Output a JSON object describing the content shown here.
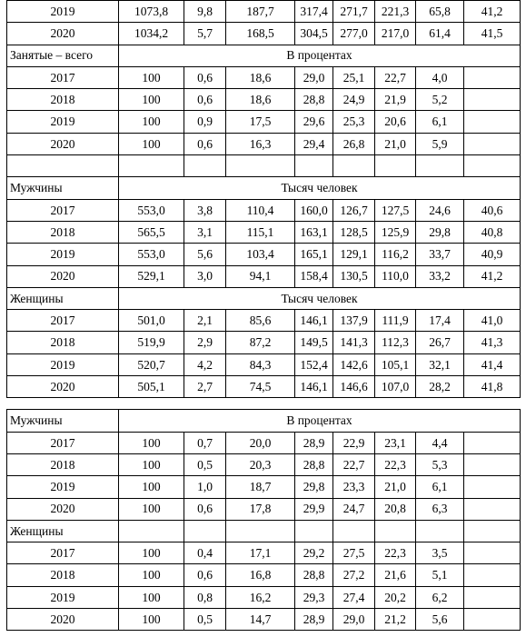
{
  "rows": [
    {
      "kind": "data",
      "year": "2019",
      "values": [
        "1073,8",
        "9,8",
        "187,7",
        "317,4",
        "271,7",
        "221,3",
        "65,8",
        "41,2"
      ]
    },
    {
      "kind": "data",
      "year": "2020",
      "values": [
        "1034,2",
        "5,7",
        "168,5",
        "304,5",
        "277,0",
        "217,0",
        "61,4",
        "41,5"
      ]
    },
    {
      "kind": "section",
      "label": "Занятые – всего",
      "unit": "В процентах"
    },
    {
      "kind": "data",
      "year": "2017",
      "values": [
        "100",
        "0,6",
        "18,6",
        "29,0",
        "25,1",
        "22,7",
        "4,0",
        ""
      ]
    },
    {
      "kind": "data",
      "year": "2018",
      "values": [
        "100",
        "0,6",
        "18,6",
        "28,8",
        "24,9",
        "21,9",
        "5,2",
        ""
      ]
    },
    {
      "kind": "data",
      "year": "2019",
      "values": [
        "100",
        "0,9",
        "17,5",
        "29,6",
        "25,3",
        "20,6",
        "6,1",
        ""
      ]
    },
    {
      "kind": "data",
      "year": "2020",
      "values": [
        "100",
        "0,6",
        "16,3",
        "29,4",
        "26,8",
        "21,0",
        "5,9",
        ""
      ]
    },
    {
      "kind": "data",
      "year": "",
      "values": [
        "",
        "",
        "",
        "",
        "",
        "",
        "",
        ""
      ]
    },
    {
      "kind": "section",
      "label": "Мужчины",
      "unit": "Тысяч человек"
    },
    {
      "kind": "data",
      "year": "2017",
      "values": [
        "553,0",
        "3,8",
        "110,4",
        "160,0",
        "126,7",
        "127,5",
        "24,6",
        "40,6"
      ]
    },
    {
      "kind": "data",
      "year": "2018",
      "values": [
        "565,5",
        "3,1",
        "115,1",
        "163,1",
        "128,5",
        "125,9",
        "29,8",
        "40,8"
      ]
    },
    {
      "kind": "data",
      "year": "2019",
      "values": [
        "553,0",
        "5,6",
        "103,4",
        "165,1",
        "129,1",
        "116,2",
        "33,7",
        "40,9"
      ]
    },
    {
      "kind": "data",
      "year": "2020",
      "values": [
        "529,1",
        "3,0",
        "94,1",
        "158,4",
        "130,5",
        "110,0",
        "33,2",
        "41,2"
      ]
    },
    {
      "kind": "section",
      "label": "Женщины",
      "unit": "Тысяч человек"
    },
    {
      "kind": "data",
      "year": "2017",
      "values": [
        "501,0",
        "2,1",
        "85,6",
        "146,1",
        "137,9",
        "111,9",
        "17,4",
        "41,0"
      ]
    },
    {
      "kind": "data",
      "year": "2018",
      "values": [
        "519,9",
        "2,9",
        "87,2",
        "149,5",
        "141,3",
        "112,3",
        "26,7",
        "41,3"
      ]
    },
    {
      "kind": "data",
      "year": "2019",
      "values": [
        "520,7",
        "4,2",
        "84,3",
        "152,4",
        "142,6",
        "105,1",
        "32,1",
        "41,4"
      ]
    },
    {
      "kind": "data",
      "year": "2020",
      "values": [
        "505,1",
        "2,7",
        "74,5",
        "146,1",
        "146,6",
        "107,0",
        "28,2",
        "41,8"
      ]
    },
    {
      "kind": "gap"
    },
    {
      "kind": "section",
      "label": "Мужчины",
      "unit": "В процентах"
    },
    {
      "kind": "data",
      "year": "2017",
      "values": [
        "100",
        "0,7",
        "20,0",
        "28,9",
        "22,9",
        "23,1",
        "4,4",
        ""
      ]
    },
    {
      "kind": "data",
      "year": "2018",
      "values": [
        "100",
        "0,5",
        "20,3",
        "28,8",
        "22,7",
        "22,3",
        "5,3",
        ""
      ]
    },
    {
      "kind": "data",
      "year": "2019",
      "values": [
        "100",
        "1,0",
        "18,7",
        "29,8",
        "23,3",
        "21,0",
        "6,1",
        ""
      ]
    },
    {
      "kind": "data",
      "year": "2020",
      "values": [
        "100",
        "0,6",
        "17,8",
        "29,9",
        "24,7",
        "20,8",
        "6,3",
        ""
      ]
    },
    {
      "kind": "label",
      "label": "Женщины",
      "values": [
        "",
        "",
        "",
        "",
        "",
        "",
        "",
        ""
      ]
    },
    {
      "kind": "data",
      "year": "2017",
      "values": [
        "100",
        "0,4",
        "17,1",
        "29,2",
        "27,5",
        "22,3",
        "3,5",
        ""
      ]
    },
    {
      "kind": "data",
      "year": "2018",
      "values": [
        "100",
        "0,6",
        "16,8",
        "28,8",
        "27,2",
        "21,6",
        "5,1",
        ""
      ]
    },
    {
      "kind": "data",
      "year": "2019",
      "values": [
        "100",
        "0,8",
        "16,2",
        "29,3",
        "27,4",
        "20,2",
        "6,2",
        ""
      ]
    },
    {
      "kind": "data",
      "year": "2020",
      "values": [
        "100",
        "0,5",
        "14,7",
        "28,9",
        "29,0",
        "21,2",
        "5,6",
        ""
      ]
    }
  ]
}
